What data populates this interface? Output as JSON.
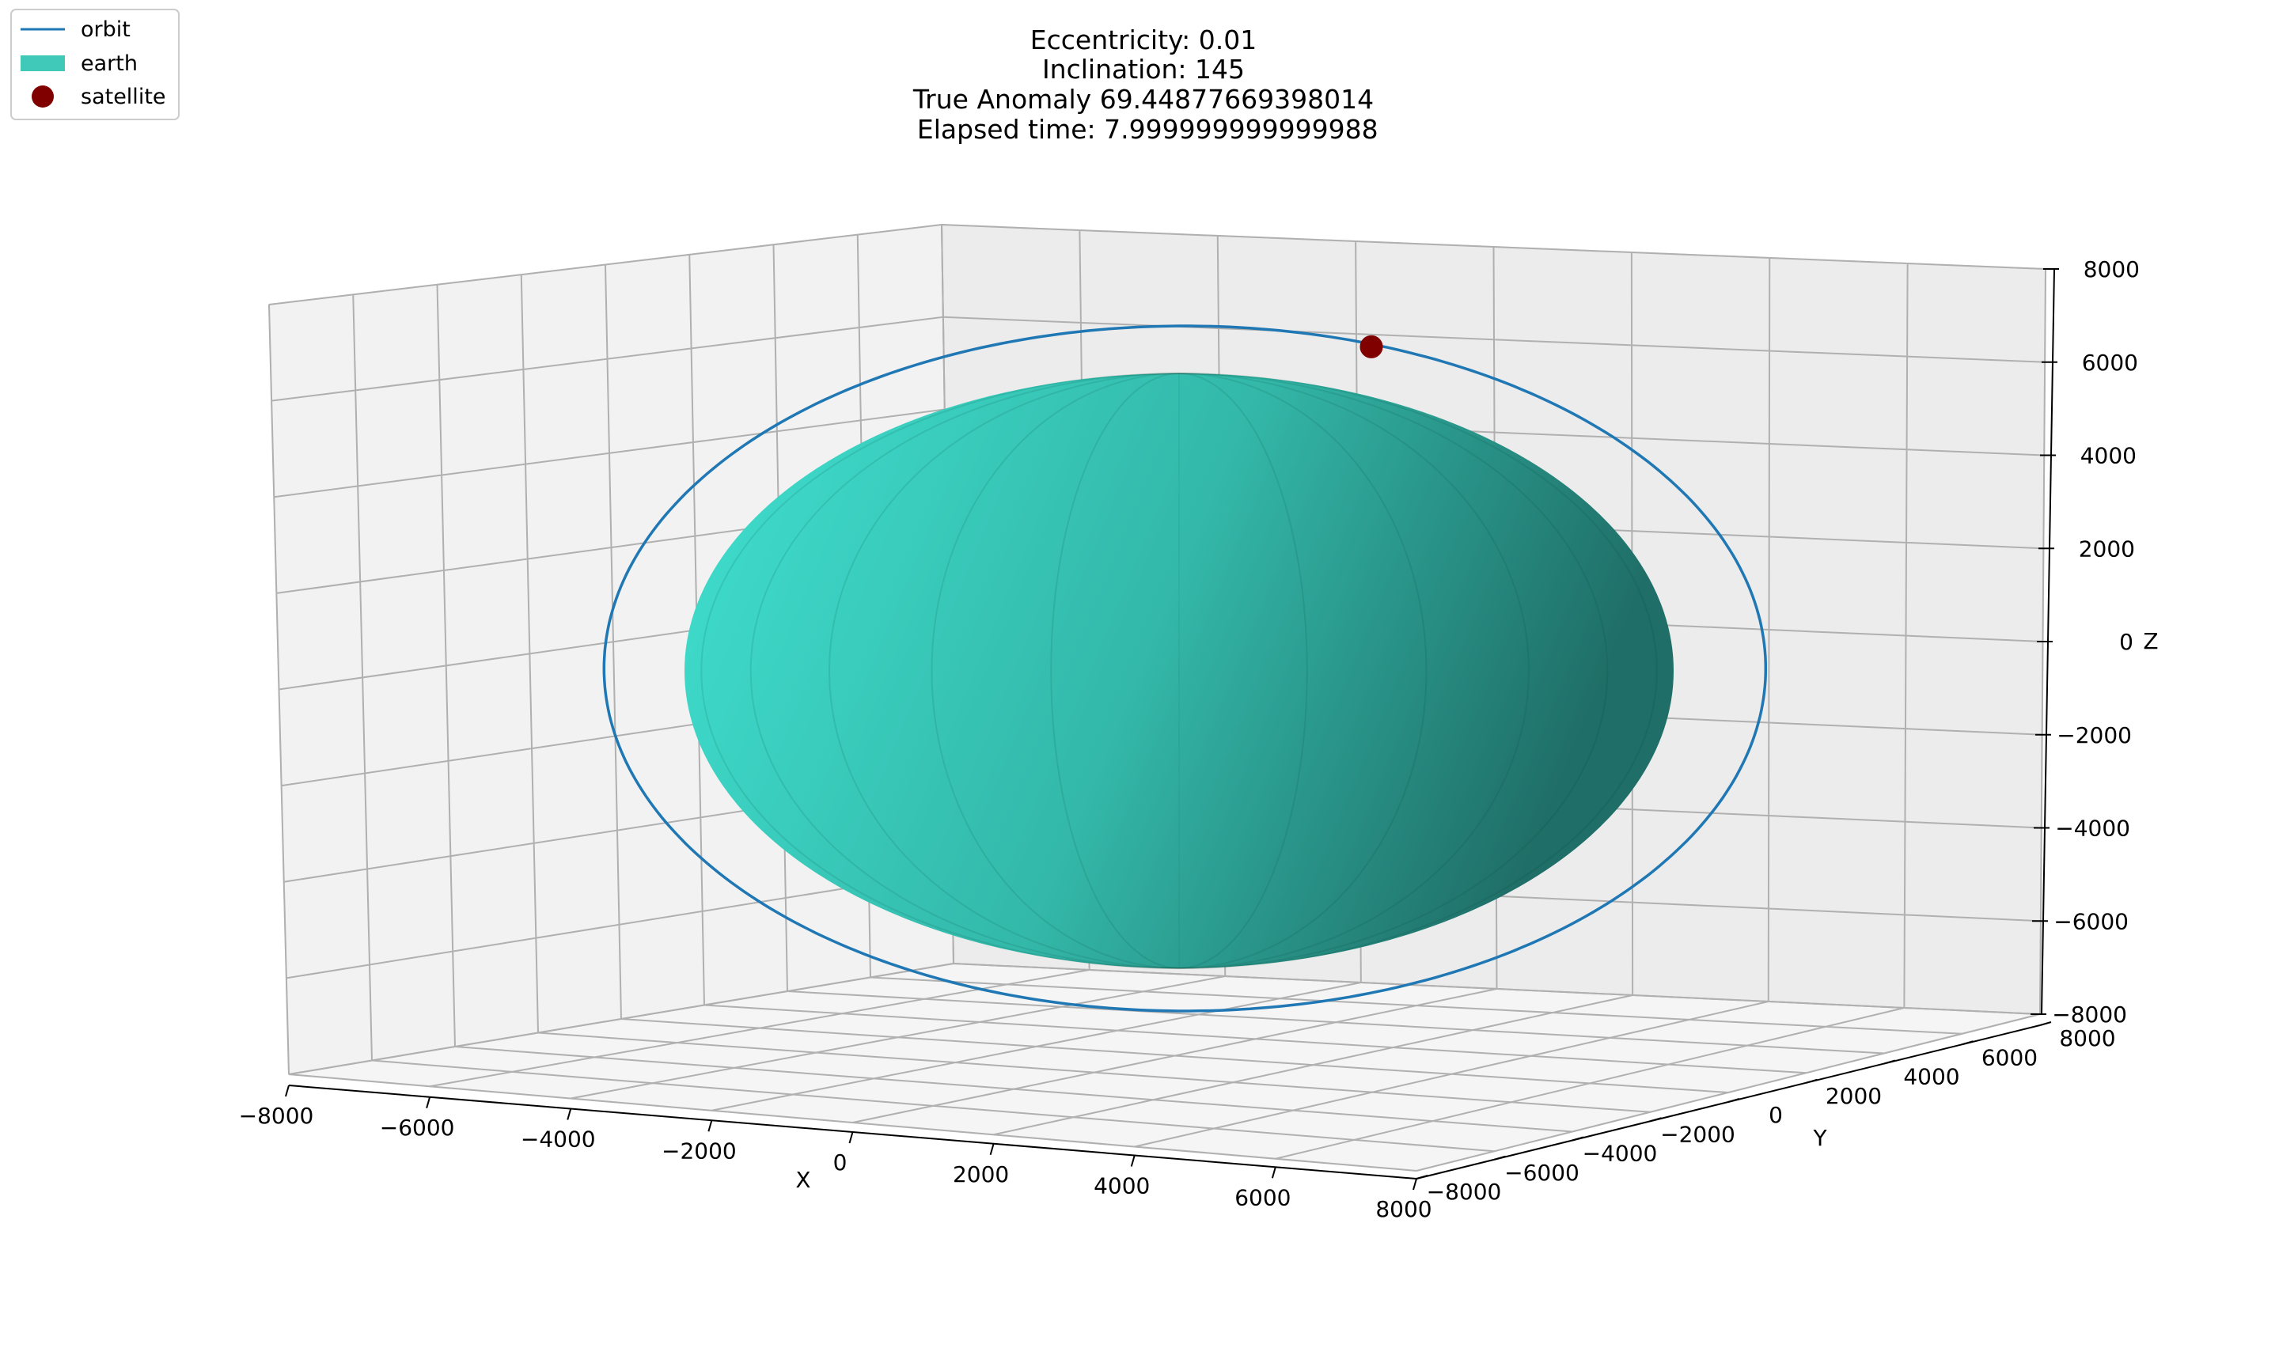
{
  "chart_data": {
    "type": "3d-scatter",
    "title_lines": [
      "Eccentricity: 0.01",
      "Inclination: 145",
      "True Anomaly 69.44877669398014",
      " Elapsed time: 7.999999999999988"
    ],
    "xlabel": "X",
    "ylabel": "Y",
    "zlabel": "Z",
    "xlim": [
      -8000,
      8000
    ],
    "ylim": [
      -8000,
      8000
    ],
    "zlim": [
      -8000,
      8000
    ],
    "ticks": [
      -8000,
      -6000,
      -4000,
      -2000,
      0,
      2000,
      4000,
      6000,
      8000
    ],
    "tick_labels": [
      "−8000",
      "−6000",
      "−4000",
      "−2000",
      "0",
      "2000",
      "4000",
      "6000",
      "8000"
    ],
    "grid": true,
    "legend_position": "top-left",
    "legend": [
      {
        "label": "orbit",
        "kind": "line",
        "color": "#1f77b4"
      },
      {
        "label": "earth",
        "kind": "patch",
        "color": "#40c9b8"
      },
      {
        "label": "satellite",
        "kind": "marker",
        "color": "#800000"
      }
    ],
    "orbit": {
      "eccentricity": 0.01,
      "inclination_deg": 145,
      "semi_major_axis": 7000,
      "color": "#1f77b4"
    },
    "earth": {
      "radius": 6371,
      "color_light": "#40e0d0",
      "color_dark": "#1f6e67"
    },
    "satellite": {
      "true_anomaly_deg": 69.44877669398014,
      "color": "#800000"
    }
  }
}
